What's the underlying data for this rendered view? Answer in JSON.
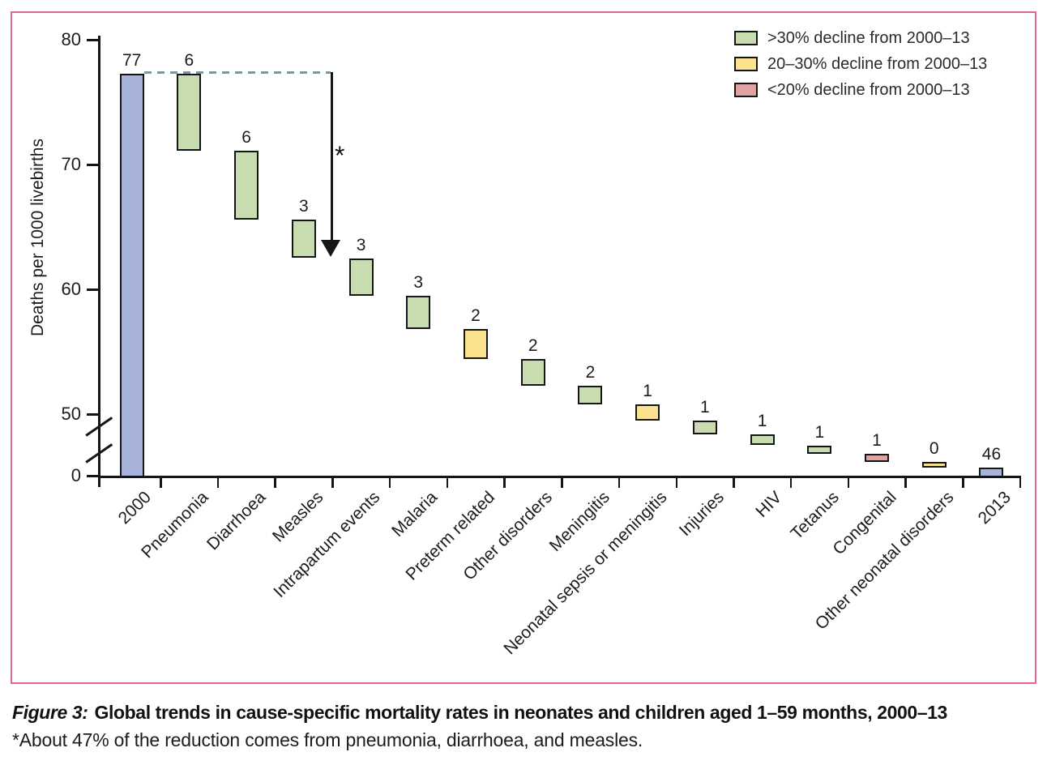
{
  "figure": {
    "border_color": "#e2688a",
    "caption": {
      "figure_label": "Figure 3:",
      "title": "Global trends in cause-specific mortality rates in neonates and children aged 1–59 months, 2000–13",
      "footnote": "*About 47% of the reduction comes from pneumonia, diarrhoea, and measles."
    }
  },
  "chart_data": {
    "type": "bar",
    "subtype": "waterfall",
    "title": "",
    "xlabel": "",
    "ylabel": "Deaths per 1000 livebirths",
    "y_axis": {
      "ticks": [
        80,
        70,
        60,
        50,
        0
      ],
      "axis_break_between": [
        50,
        0
      ]
    },
    "endpoints": {
      "start": {
        "category": "2000",
        "value": 77,
        "value_label": "77"
      },
      "end": {
        "category": "2013",
        "value": 46,
        "value_label": "46"
      }
    },
    "causes": [
      {
        "category": "Pneumonia",
        "decline": 6,
        "band": "gt30",
        "from": 77.3,
        "to": 71.1
      },
      {
        "category": "Diarrhoea",
        "decline": 6,
        "band": "gt30",
        "from": 71.1,
        "to": 65.6
      },
      {
        "category": "Measles",
        "decline": 3,
        "band": "gt30",
        "from": 65.6,
        "to": 62.5
      },
      {
        "category": "Intrapartum events",
        "decline": 3,
        "band": "gt30",
        "from": 62.5,
        "to": 59.5
      },
      {
        "category": "Malaria",
        "decline": 3,
        "band": "gt30",
        "from": 59.5,
        "to": 56.8
      },
      {
        "category": "Preterm related",
        "decline": 2,
        "band": "b20to30",
        "from": 56.8,
        "to": 54.4
      },
      {
        "category": "Other disorders",
        "decline": 2,
        "band": "gt30",
        "from": 54.4,
        "to": 52.3
      },
      {
        "category": "Meningitis",
        "decline": 2,
        "band": "gt30",
        "from": 52.3,
        "to": 50.8
      },
      {
        "category": "Neonatal sepsis or meningitis",
        "decline": 1,
        "band": "b20to30",
        "from": 50.8,
        "to": 49.5
      },
      {
        "category": "Injuries",
        "decline": 1,
        "band": "gt30",
        "from": 49.5,
        "to": 48.4
      },
      {
        "category": "HIV",
        "decline": 1,
        "band": "gt30",
        "from": 48.4,
        "to": 47.5
      },
      {
        "category": "Tetanus",
        "decline": 1,
        "band": "gt30",
        "from": 47.5,
        "to": 46.8
      },
      {
        "category": "Congenital",
        "decline": 1,
        "band": "lt20",
        "from": 46.8,
        "to": 46.2
      },
      {
        "category": "Other neonatal disorders",
        "decline": 0,
        "band": "b20to30",
        "from": 46.2,
        "to": 45.7
      }
    ],
    "legend": {
      "position": "top-right",
      "entries": [
        {
          "band": "gt30",
          "label": ">30% decline from 2000–13",
          "color": "#c7ddb0"
        },
        {
          "band": "b20to30",
          "label": "20–30% decline from 2000–13",
          "color": "#fae28e"
        },
        {
          "band": "lt20",
          "label": "<20% decline from 2000–13",
          "color": "#dfa3a3"
        }
      ]
    },
    "colors": {
      "endpoint_bar": "#a8b3db",
      "dashed_reference_line": "#7d97a0"
    },
    "annotation": {
      "marker": "*"
    }
  }
}
